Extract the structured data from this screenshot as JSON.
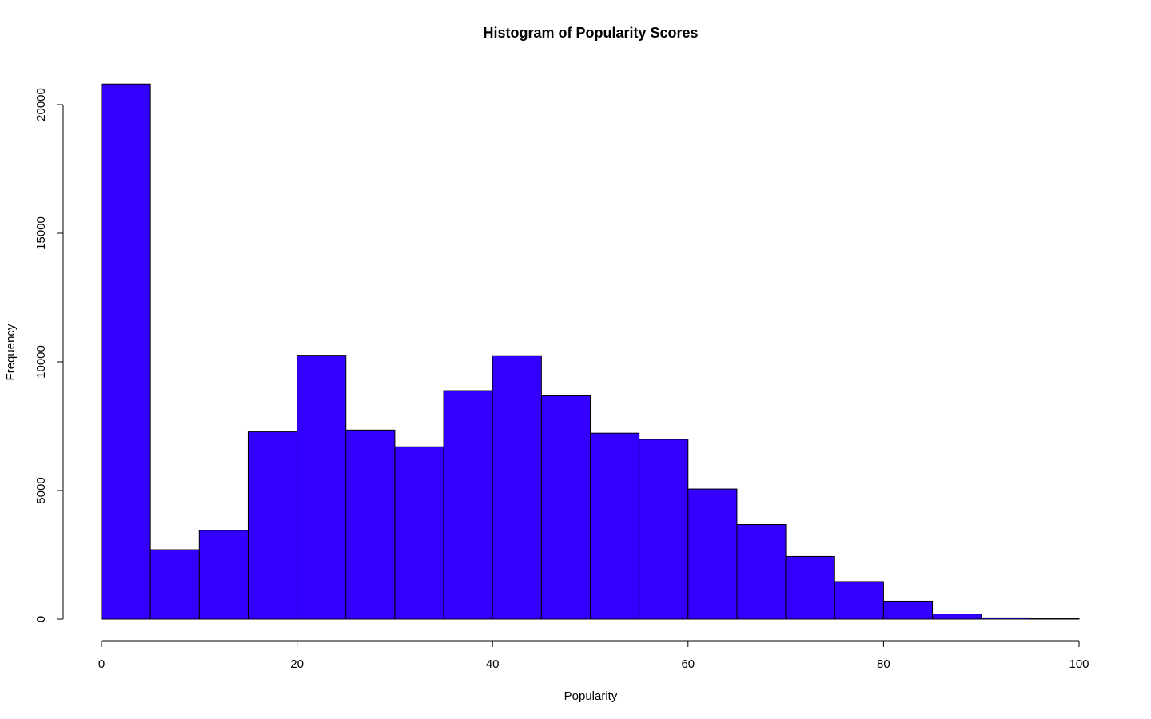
{
  "chart_data": {
    "type": "bar",
    "title": "Histogram of Popularity Scores",
    "xlabel": "Popularity",
    "ylabel": "Frequency",
    "bar_color": "#3300ff",
    "xlim": [
      0,
      100
    ],
    "ylim": [
      0,
      20800
    ],
    "x_ticks": [
      0,
      20,
      40,
      60,
      80,
      100
    ],
    "y_ticks": [
      0,
      5000,
      10000,
      15000,
      20000
    ],
    "bins": [
      {
        "start": 0,
        "end": 5,
        "value": 20800
      },
      {
        "start": 5,
        "end": 10,
        "value": 2700
      },
      {
        "start": 10,
        "end": 15,
        "value": 3450
      },
      {
        "start": 15,
        "end": 20,
        "value": 7280
      },
      {
        "start": 20,
        "end": 25,
        "value": 10260
      },
      {
        "start": 25,
        "end": 30,
        "value": 7350
      },
      {
        "start": 30,
        "end": 35,
        "value": 6700
      },
      {
        "start": 35,
        "end": 40,
        "value": 8880
      },
      {
        "start": 40,
        "end": 45,
        "value": 10240
      },
      {
        "start": 45,
        "end": 50,
        "value": 8680
      },
      {
        "start": 50,
        "end": 55,
        "value": 7230
      },
      {
        "start": 55,
        "end": 60,
        "value": 6990
      },
      {
        "start": 60,
        "end": 65,
        "value": 5060
      },
      {
        "start": 65,
        "end": 70,
        "value": 3680
      },
      {
        "start": 70,
        "end": 75,
        "value": 2440
      },
      {
        "start": 75,
        "end": 80,
        "value": 1460
      },
      {
        "start": 80,
        "end": 85,
        "value": 700
      },
      {
        "start": 85,
        "end": 90,
        "value": 200
      },
      {
        "start": 90,
        "end": 95,
        "value": 50
      },
      {
        "start": 95,
        "end": 100,
        "value": 15
      }
    ]
  }
}
